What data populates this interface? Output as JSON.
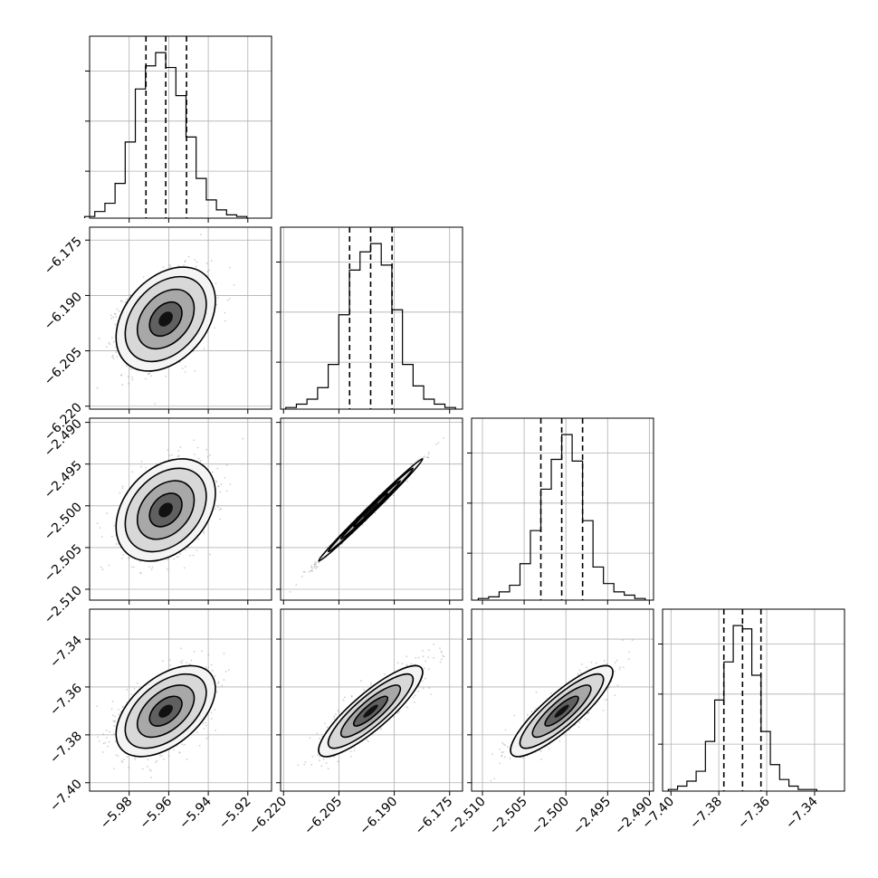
{
  "chart_data": {
    "type": "corner",
    "grid": true,
    "parameters": [
      {
        "ticks": [
          "−5.98",
          "−5.96",
          "−5.94",
          "−5.92"
        ],
        "tick_values": [
          -5.98,
          -5.96,
          -5.94,
          -5.92
        ],
        "range": [
          -6.0,
          -5.908
        ],
        "mean": -5.9615,
        "quantiles": [
          -5.9715,
          -5.9615,
          -5.951
        ],
        "histogram": [
          1,
          4,
          9,
          21,
          46,
          78,
          92,
          100,
          91,
          74,
          49,
          24,
          11,
          5,
          2,
          1
        ]
      },
      {
        "ticks": [
          "−6.220",
          "−6.205",
          "−6.190",
          "−6.175"
        ],
        "tick_values": [
          -6.22,
          -6.205,
          -6.19,
          -6.175
        ],
        "range": [
          -6.2208,
          -6.1715
        ],
        "mean": -6.1964,
        "quantiles": [
          -6.2021,
          -6.1964,
          -6.1906
        ],
        "histogram": [
          1,
          3,
          6,
          13,
          27,
          57,
          84,
          95,
          100,
          87,
          60,
          27,
          14,
          6,
          3,
          1
        ]
      },
      {
        "ticks": [
          "−2.510",
          "−2.505",
          "−2.500",
          "−2.495",
          "−2.490"
        ],
        "tick_values": [
          -2.51,
          -2.505,
          -2.5,
          -2.495,
          -2.49
        ],
        "range": [
          -2.5113,
          -2.4895
        ],
        "mean": -2.5005,
        "quantiles": [
          -2.503,
          -2.5005,
          -2.498
        ],
        "histogram": [
          1,
          2,
          5,
          9,
          22,
          42,
          67,
          85,
          100,
          84,
          48,
          20,
          10,
          5,
          3,
          1
        ]
      },
      {
        "ticks": [
          "−7.40",
          "−7.38",
          "−7.36",
          "−7.34"
        ],
        "tick_values": [
          -7.4,
          -7.38,
          -7.36,
          -7.34
        ],
        "range": [
          -7.4035,
          -7.3275
        ],
        "mean": -7.3701,
        "quantiles": [
          -7.3779,
          -7.3701,
          -7.3624
        ],
        "histogram": [
          1,
          3,
          6,
          12,
          30,
          55,
          78,
          100,
          98,
          70,
          36,
          16,
          7,
          3,
          1,
          1
        ]
      }
    ],
    "pairs": [
      {
        "x": 0,
        "y": 1,
        "rho": 0.35
      },
      {
        "x": 0,
        "y": 2,
        "rho": 0.33
      },
      {
        "x": 1,
        "y": 2,
        "rho": 0.995
      },
      {
        "x": 0,
        "y": 3,
        "rho": 0.5
      },
      {
        "x": 1,
        "y": 3,
        "rho": 0.86
      },
      {
        "x": 2,
        "y": 3,
        "rho": 0.86
      }
    ]
  }
}
